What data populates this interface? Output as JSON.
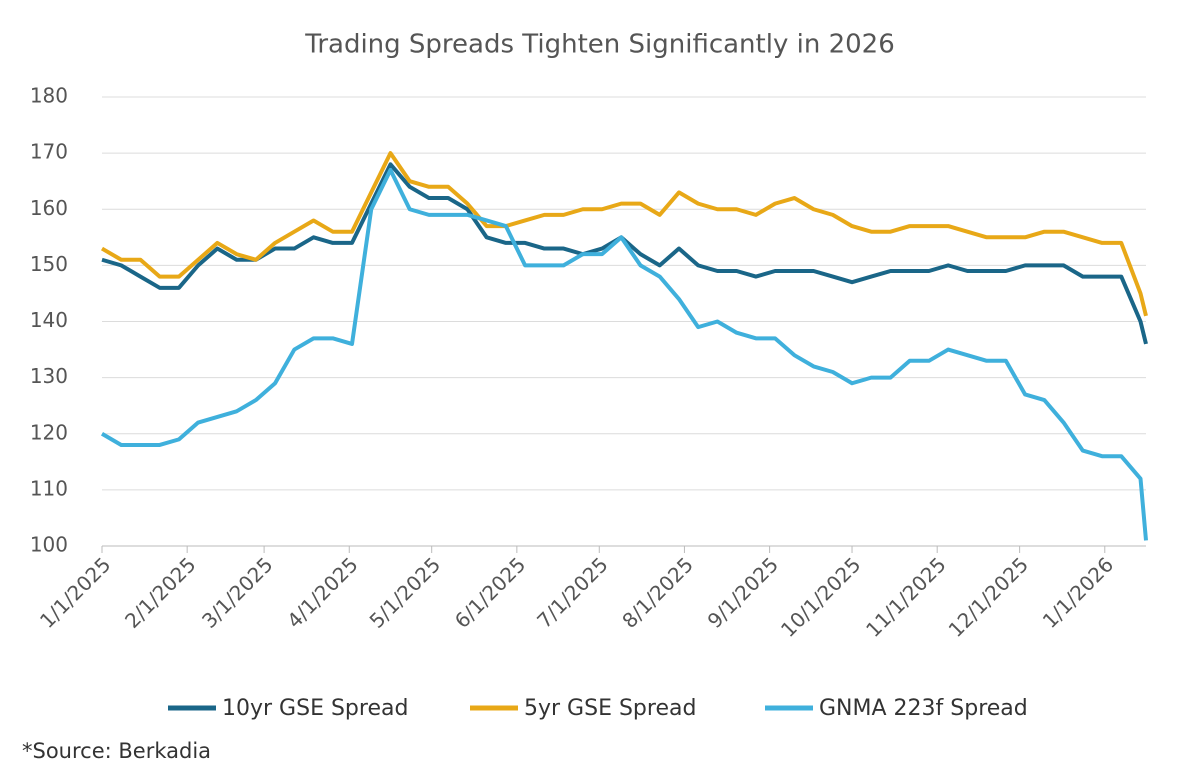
{
  "chart_data": {
    "type": "line",
    "title": "Trading Spreads Tighten Significantly in 2026",
    "note": "*Source: Berkadia",
    "x": [
      "1/1/2025",
      "1/8/2025",
      "1/15/2025",
      "1/22/2025",
      "1/29/2025",
      "2/5/2025",
      "2/12/2025",
      "2/19/2025",
      "2/26/2025",
      "3/5/2025",
      "3/12/2025",
      "3/19/2025",
      "3/26/2025",
      "4/2/2025",
      "4/9/2025",
      "4/16/2025",
      "4/23/2025",
      "4/30/2025",
      "5/7/2025",
      "5/14/2025",
      "5/21/2025",
      "5/28/2025",
      "6/4/2025",
      "6/11/2025",
      "6/18/2025",
      "6/25/2025",
      "7/2/2025",
      "7/9/2025",
      "7/16/2025",
      "7/23/2025",
      "7/30/2025",
      "8/6/2025",
      "8/13/2025",
      "8/20/2025",
      "8/27/2025",
      "9/3/2025",
      "9/10/2025",
      "9/17/2025",
      "9/24/2025",
      "10/1/2025",
      "10/8/2025",
      "10/15/2025",
      "10/22/2025",
      "10/29/2025",
      "11/5/2025",
      "11/12/2025",
      "11/19/2025",
      "11/26/2025",
      "12/3/2025",
      "12/10/2025",
      "12/17/2025",
      "12/24/2025",
      "12/31/2025",
      "1/7/2026",
      "1/14/2026",
      "1/16/2026"
    ],
    "series": [
      {
        "name": "10yr GSE Spread",
        "color": "#1a6688",
        "values": [
          151,
          150,
          148,
          146,
          146,
          150,
          153,
          151,
          151,
          153,
          153,
          155,
          154,
          154,
          161,
          168,
          164,
          162,
          162,
          160,
          155,
          154,
          154,
          153,
          153,
          152,
          153,
          155,
          152,
          150,
          153,
          150,
          149,
          149,
          148,
          149,
          149,
          149,
          148,
          147,
          148,
          149,
          149,
          149,
          150,
          149,
          149,
          149,
          150,
          150,
          150,
          148,
          148,
          148,
          140,
          136
        ]
      },
      {
        "name": "5yr GSE Spread",
        "color": "#e8a817",
        "values": [
          153,
          151,
          151,
          148,
          148,
          151,
          154,
          152,
          151,
          154,
          156,
          158,
          156,
          156,
          163,
          170,
          165,
          164,
          164,
          161,
          157,
          157,
          158,
          159,
          159,
          160,
          160,
          161,
          161,
          159,
          163,
          161,
          160,
          160,
          159,
          161,
          162,
          160,
          159,
          157,
          156,
          156,
          157,
          157,
          157,
          156,
          155,
          155,
          155,
          156,
          156,
          155,
          154,
          154,
          145,
          141
        ]
      },
      {
        "name": "GNMA 223f Spread",
        "color": "#3fb0dc",
        "values": [
          120,
          118,
          118,
          118,
          119,
          122,
          123,
          124,
          126,
          129,
          135,
          137,
          137,
          136,
          160,
          167,
          160,
          159,
          159,
          159,
          158,
          157,
          150,
          150,
          150,
          152,
          152,
          155,
          150,
          148,
          144,
          139,
          140,
          138,
          137,
          137,
          134,
          132,
          131,
          129,
          130,
          130,
          133,
          133,
          135,
          134,
          133,
          133,
          127,
          126,
          122,
          117,
          116,
          116,
          112,
          101
        ]
      }
    ],
    "xlim": [
      "1/1/2025",
      "1/16/2026"
    ],
    "xticks": [
      "1/1/2025",
      "2/1/2025",
      "3/1/2025",
      "4/1/2025",
      "5/1/2025",
      "6/1/2025",
      "7/1/2025",
      "8/1/2025",
      "9/1/2025",
      "10/1/2025",
      "11/1/2025",
      "12/1/2025",
      "1/1/2026"
    ],
    "ylim": [
      100,
      180
    ],
    "yticks": [
      100,
      110,
      120,
      130,
      140,
      150,
      160,
      170,
      180
    ],
    "grid": true,
    "legend": "bottom"
  }
}
